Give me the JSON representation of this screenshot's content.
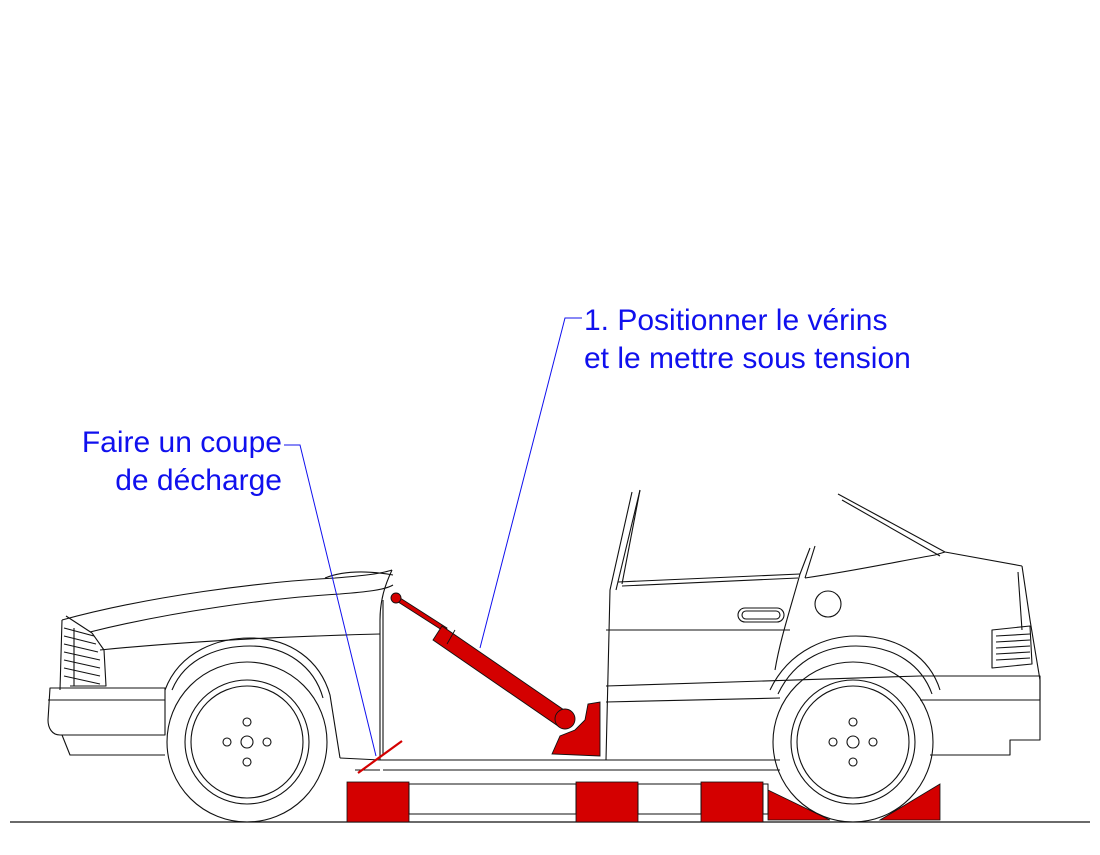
{
  "labels": {
    "relief_cut": {
      "line1": "Faire un coupe",
      "line2": "de décharge"
    },
    "jack": {
      "line1": "1. Positionner le vérins",
      "line2": "et le mettre sous tension"
    }
  },
  "colors": {
    "label_text": "#1010ee",
    "leader_line": "#1010ee",
    "tool_red": "#d40000",
    "outline": "#111111"
  }
}
